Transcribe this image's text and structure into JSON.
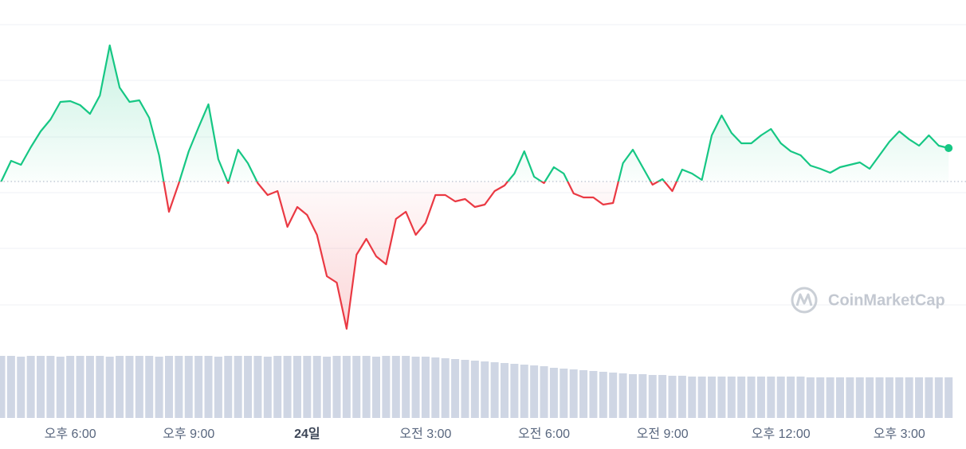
{
  "chart_data": {
    "type": "line",
    "x": [
      -1.75,
      -1.5,
      -1.25,
      -1,
      -0.75,
      -0.5,
      -0.25,
      0,
      0.25,
      0.5,
      0.75,
      1,
      1.25,
      1.5,
      1.75,
      2,
      2.25,
      2.5,
      2.75,
      3,
      3.25,
      3.5,
      3.75,
      4,
      4.25,
      4.5,
      4.75,
      5,
      5.25,
      5.5,
      5.75,
      6,
      6.25,
      6.5,
      6.75,
      7,
      7.25,
      7.5,
      7.75,
      8,
      8.25,
      8.5,
      8.75,
      9,
      9.25,
      9.5,
      9.75,
      10,
      10.25,
      10.5,
      10.75,
      11,
      11.25,
      11.5,
      11.75,
      12,
      12.25,
      12.5,
      12.75,
      13,
      13.25,
      13.5,
      13.75,
      14,
      14.25,
      14.5,
      14.75,
      15,
      15.25,
      15.5,
      15.75,
      16,
      16.25,
      16.5,
      16.75,
      17,
      17.25,
      17.5,
      17.75,
      18,
      18.25,
      18.5,
      18.75,
      19,
      19.25,
      19.5,
      19.75,
      20,
      20.25,
      20.5,
      20.75,
      21,
      21.25,
      21.5,
      21.75,
      22,
      22.25
    ],
    "series": [
      {
        "color": "#16c784",
        "color_below": "#ea3943",
        "values": [
          225,
          251,
          246,
          268,
          288,
          303,
          325,
          326,
          321,
          310,
          333,
          396,
          343,
          325,
          327,
          305,
          258,
          187,
          223,
          263,
          293,
          322,
          253,
          223,
          265,
          248,
          223,
          208,
          213,
          168,
          193,
          183,
          158,
          106,
          98,
          40,
          133,
          153,
          131,
          121,
          178,
          187,
          158,
          173,
          208,
          208,
          200,
          203,
          193,
          196,
          213,
          220,
          235,
          263,
          231,
          223,
          243,
          235,
          210,
          205,
          205,
          196,
          198,
          248,
          265,
          243,
          221,
          228,
          213,
          240,
          235,
          227,
          283,
          308,
          286,
          273,
          273,
          283,
          291,
          273,
          263,
          258,
          245,
          241,
          236,
          243,
          246,
          249,
          241,
          258,
          275,
          288,
          278,
          270,
          283,
          270,
          267
        ]
      }
    ],
    "baseline": 225,
    "volume": {
      "color": "#cfd6e4",
      "values": [
        78,
        78,
        77,
        78,
        78,
        78,
        77,
        78,
        78,
        78,
        78,
        77,
        78,
        78,
        78,
        78,
        77,
        78,
        78,
        78,
        78,
        78,
        77,
        78,
        78,
        78,
        78,
        77,
        78,
        78,
        78,
        78,
        78,
        77,
        78,
        78,
        78,
        78,
        77,
        78,
        78,
        78,
        77,
        77,
        76,
        75,
        74,
        73,
        72,
        71,
        70,
        69,
        68,
        67,
        66,
        65,
        63,
        62,
        61,
        60,
        59,
        58,
        57,
        56,
        55,
        55,
        54,
        54,
        53,
        53,
        52,
        52,
        52,
        52,
        52,
        52,
        52,
        52,
        52,
        52,
        52,
        52,
        51,
        51,
        51,
        51,
        51,
        51,
        51,
        51,
        51,
        51,
        51,
        51,
        51,
        51,
        51
      ]
    },
    "xlim": [
      -1.78,
      22.69
    ],
    "ylim": [
      0,
      453
    ],
    "y2lim": [
      0,
      100
    ],
    "yticks": [
      70,
      141,
      211,
      281,
      352,
      422
    ],
    "grid": true,
    "xticks": [
      {
        "value": 0,
        "label": "오후 6:00"
      },
      {
        "value": 3,
        "label": "오후 9:00"
      },
      {
        "value": 6,
        "label": "24일"
      },
      {
        "value": 9,
        "label": "오전 3:00"
      },
      {
        "value": 12,
        "label": "오전 6:00"
      },
      {
        "value": 15,
        "label": "오전 9:00"
      },
      {
        "value": 18,
        "label": "오후 12:00"
      },
      {
        "value": 21,
        "label": "오후 3:00"
      }
    ],
    "watermark": "CoinMarketCap"
  }
}
